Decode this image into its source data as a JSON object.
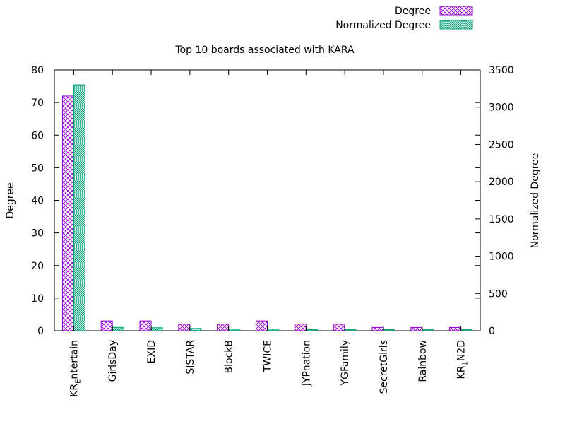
{
  "chart_data": {
    "type": "bar",
    "title": "Top 10 boards associated with KARA",
    "categories": [
      {
        "base": "KR",
        "sub": "E",
        "rest": "ntertain"
      },
      {
        "base": "GirlsDay",
        "sub": "",
        "rest": ""
      },
      {
        "base": "EXID",
        "sub": "",
        "rest": ""
      },
      {
        "base": "SISTAR",
        "sub": "",
        "rest": ""
      },
      {
        "base": "BlockB",
        "sub": "",
        "rest": ""
      },
      {
        "base": "TWICE",
        "sub": "",
        "rest": ""
      },
      {
        "base": "JYPnation",
        "sub": "",
        "rest": ""
      },
      {
        "base": "YGFamily",
        "sub": "",
        "rest": ""
      },
      {
        "base": "SecretGirls",
        "sub": "",
        "rest": ""
      },
      {
        "base": "Rainbow",
        "sub": "",
        "rest": ""
      },
      {
        "base": "KR",
        "sub": "1",
        "rest": "N2D"
      }
    ],
    "series": [
      {
        "name": "Degree",
        "axis": "left",
        "color": "#9400d3",
        "pattern": "crosshatch",
        "values": [
          72,
          3,
          3,
          2,
          2,
          3,
          2,
          2,
          1,
          1,
          1
        ]
      },
      {
        "name": "Normalized Degree",
        "axis": "right",
        "color": "#009e73",
        "pattern": "dense",
        "values": [
          3300,
          45,
          40,
          30,
          20,
          20,
          15,
          15,
          15,
          15,
          15
        ]
      }
    ],
    "ylabel": "Degree",
    "y2label": "Normalized Degree",
    "ylim": [
      0,
      80
    ],
    "y2lim": [
      0,
      3500
    ],
    "yticks": [
      0,
      10,
      20,
      30,
      40,
      50,
      60,
      70,
      80
    ],
    "y2ticks": [
      0,
      500,
      1000,
      1500,
      2000,
      2500,
      3000,
      3500
    ],
    "grid": false,
    "legend_position": "top-right"
  }
}
